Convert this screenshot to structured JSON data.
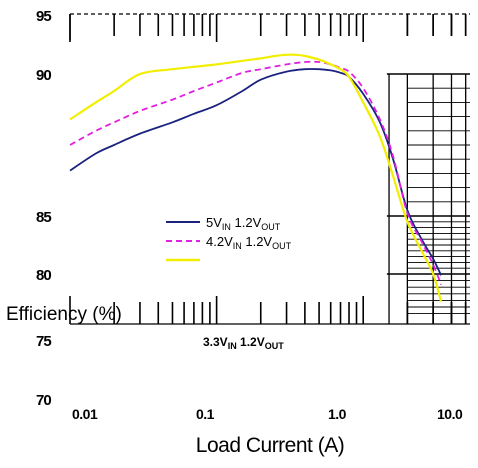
{
  "chart_data": {
    "type": "line",
    "x_scale": "log",
    "xlabel": "Load Current (A)",
    "ylabel": "Efficiency (%)",
    "x_ticks": [
      "0.01",
      "0.1",
      "1.0",
      "10.0"
    ],
    "y_ticks": [
      "95",
      "90",
      "85",
      "80",
      "75",
      "70"
    ],
    "legend_position": "center-left",
    "annotation": {
      "main": "3.3V",
      "sub1": "IN",
      "mid": " 1.2V",
      "sub2": "OUT"
    },
    "series": [
      {
        "legend": {
          "main": "5V",
          "sub1": "IN",
          "mid": " 1.2V",
          "sub2": "OUT"
        },
        "color": "#1a237e",
        "dash": "solid",
        "x": [
          0.01,
          0.015,
          0.02,
          0.03,
          0.05,
          0.07,
          0.1,
          0.15,
          0.2,
          0.3,
          0.4,
          0.5,
          0.6,
          0.7,
          0.8,
          1.0,
          1.3,
          1.6,
          2.0,
          2.5,
          3.0,
          3.4
        ],
        "y": [
          86.6,
          87.2,
          87.5,
          87.9,
          88.3,
          88.6,
          88.9,
          89.4,
          89.8,
          90.2,
          90.4,
          90.4,
          90.3,
          90.1,
          89.9,
          89.3,
          88.3,
          87.0,
          85.2,
          83.0,
          81.3,
          79.9
        ]
      },
      {
        "legend": {
          "main": "4.2V",
          "sub1": "IN",
          "mid": " 1.2V",
          "sub2": "OUT"
        },
        "color": "#e020e0",
        "dash": "dashed",
        "x": [
          0.01,
          0.015,
          0.02,
          0.03,
          0.05,
          0.07,
          0.1,
          0.15,
          0.2,
          0.3,
          0.4,
          0.5,
          0.6,
          0.7,
          0.8,
          1.0,
          1.3,
          1.6,
          2.0,
          2.5,
          3.0,
          3.4
        ],
        "y": [
          87.5,
          88.0,
          88.3,
          88.7,
          89.1,
          89.4,
          89.7,
          90.1,
          90.4,
          90.8,
          91.0,
          91.0,
          90.8,
          90.5,
          90.2,
          89.5,
          88.4,
          87.1,
          85.1,
          82.8,
          80.8,
          79.2
        ]
      },
      {
        "legend": {
          "main": "",
          "sub1": "",
          "mid": "",
          "sub2": ""
        },
        "color": "#f2ee00",
        "dash": "solid",
        "x": [
          0.01,
          0.015,
          0.02,
          0.03,
          0.05,
          0.07,
          0.1,
          0.15,
          0.2,
          0.25,
          0.3,
          0.35,
          0.4,
          0.5,
          0.6,
          0.7,
          0.8,
          1.0,
          1.3,
          1.6,
          2.0,
          2.5,
          3.0,
          3.4
        ],
        "y": [
          88.4,
          89.0,
          89.4,
          90.0,
          90.4,
          90.6,
          90.8,
          91.1,
          91.3,
          91.5,
          91.6,
          91.6,
          91.5,
          91.2,
          90.8,
          90.4,
          89.9,
          89.0,
          87.8,
          86.4,
          84.5,
          82.0,
          80.0,
          77.9
        ]
      }
    ]
  }
}
